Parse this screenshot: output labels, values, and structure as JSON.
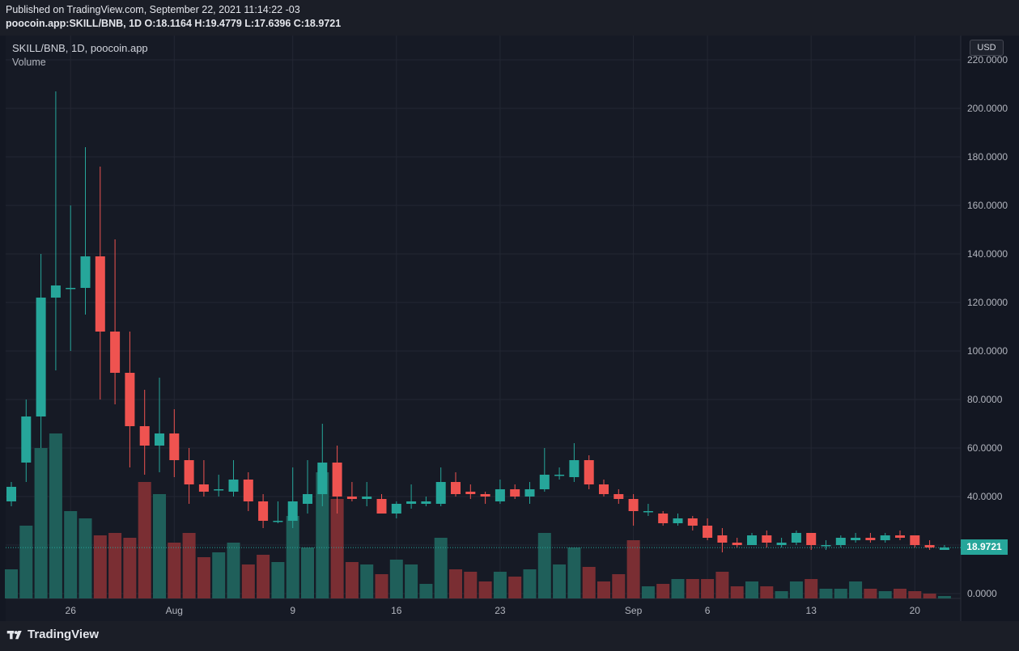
{
  "header": {
    "published": "Published on TradingView.com, September 22, 2021 11:14:22 -03",
    "symbol": "poocoin.app:SKILL/BNB, 1D",
    "o_label": "O:",
    "o_value": "18.1164",
    "h_label": "H:",
    "h_value": "19.4779",
    "l_label": "L:",
    "l_value": "17.6396",
    "c_label": "C:",
    "c_value": "18.9721"
  },
  "legend": {
    "series": "SKILL/BNB, 1D, poocoin.app",
    "volume": "Volume"
  },
  "currency_button": "USD",
  "last_price": "18.9721",
  "footer": {
    "brand": "TradingView"
  },
  "colors": {
    "up": "#26a69a",
    "down": "#ef5350",
    "up_vol": "#1f5f5a",
    "down_vol": "#7a2e33",
    "background": "#161a25"
  },
  "chart_data": {
    "type": "candlestick",
    "ylim": [
      0,
      220
    ],
    "y_ticks": [
      "0.0000",
      "20.0000",
      "40.0000",
      "60.0000",
      "80.0000",
      "100.0000",
      "120.0000",
      "140.0000",
      "160.0000",
      "180.0000",
      "200.0000",
      "220.0000"
    ],
    "x_ticks": [
      "26",
      "Aug",
      "9",
      "16",
      "23",
      "Sep",
      "6",
      "13",
      "20"
    ],
    "grid": true,
    "volume_pane": true,
    "candles": [
      {
        "o": 38,
        "h": 46,
        "l": 36,
        "c": 44,
        "v": 12
      },
      {
        "o": 54,
        "h": 80,
        "l": 46,
        "c": 73,
        "v": 30
      },
      {
        "o": 73,
        "h": 140,
        "l": 60,
        "c": 122,
        "v": 62
      },
      {
        "o": 122,
        "h": 207,
        "l": 92,
        "c": 127,
        "v": 68
      },
      {
        "o": 126,
        "h": 160,
        "l": 100,
        "c": 126,
        "v": 36
      },
      {
        "o": 126,
        "h": 184,
        "l": 115,
        "c": 139,
        "v": 33
      },
      {
        "o": 139,
        "h": 176,
        "l": 80,
        "c": 108,
        "v": 26
      },
      {
        "o": 108,
        "h": 146,
        "l": 78,
        "c": 91,
        "v": 27
      },
      {
        "o": 91,
        "h": 108,
        "l": 52,
        "c": 69,
        "v": 25
      },
      {
        "o": 69,
        "h": 84,
        "l": 49,
        "c": 61,
        "v": 48
      },
      {
        "o": 61,
        "h": 89,
        "l": 50,
        "c": 66,
        "v": 43
      },
      {
        "o": 66,
        "h": 76,
        "l": 48,
        "c": 55,
        "v": 23
      },
      {
        "o": 55,
        "h": 60,
        "l": 37,
        "c": 45,
        "v": 27
      },
      {
        "o": 45,
        "h": 55,
        "l": 40,
        "c": 42,
        "v": 17
      },
      {
        "o": 43,
        "h": 49,
        "l": 40,
        "c": 43,
        "v": 19
      },
      {
        "o": 42,
        "h": 55,
        "l": 40,
        "c": 47,
        "v": 23
      },
      {
        "o": 47,
        "h": 50,
        "l": 34,
        "c": 38,
        "v": 14
      },
      {
        "o": 38,
        "h": 41,
        "l": 27,
        "c": 30,
        "v": 18
      },
      {
        "o": 30,
        "h": 38,
        "l": 29,
        "c": 30,
        "v": 15
      },
      {
        "o": 30,
        "h": 52,
        "l": 27,
        "c": 38,
        "v": 34
      },
      {
        "o": 37,
        "h": 55,
        "l": 33,
        "c": 41,
        "v": 21
      },
      {
        "o": 41,
        "h": 70,
        "l": 36,
        "c": 54,
        "v": 52
      },
      {
        "o": 54,
        "h": 61,
        "l": 33,
        "c": 40,
        "v": 41
      },
      {
        "o": 40,
        "h": 46,
        "l": 38,
        "c": 39,
        "v": 15
      },
      {
        "o": 39,
        "h": 46,
        "l": 36,
        "c": 40,
        "v": 14
      },
      {
        "o": 39,
        "h": 41,
        "l": 33,
        "c": 33,
        "v": 10
      },
      {
        "o": 33,
        "h": 38,
        "l": 31,
        "c": 37,
        "v": 16
      },
      {
        "o": 37,
        "h": 45,
        "l": 35,
        "c": 38,
        "v": 14
      },
      {
        "o": 37,
        "h": 40,
        "l": 36,
        "c": 38,
        "v": 6
      },
      {
        "o": 37,
        "h": 52,
        "l": 36,
        "c": 46,
        "v": 25
      },
      {
        "o": 46,
        "h": 50,
        "l": 40,
        "c": 41,
        "v": 12
      },
      {
        "o": 42,
        "h": 45,
        "l": 39,
        "c": 41,
        "v": 11
      },
      {
        "o": 41,
        "h": 42,
        "l": 37,
        "c": 40,
        "v": 7
      },
      {
        "o": 38,
        "h": 47,
        "l": 37,
        "c": 43,
        "v": 11
      },
      {
        "o": 43,
        "h": 45,
        "l": 39,
        "c": 40,
        "v": 9
      },
      {
        "o": 40,
        "h": 46,
        "l": 37,
        "c": 43,
        "v": 12
      },
      {
        "o": 43,
        "h": 60,
        "l": 42,
        "c": 49,
        "v": 27
      },
      {
        "o": 49,
        "h": 52,
        "l": 47,
        "c": 49,
        "v": 14
      },
      {
        "o": 48,
        "h": 62,
        "l": 46,
        "c": 55,
        "v": 21
      },
      {
        "o": 55,
        "h": 57,
        "l": 43,
        "c": 45,
        "v": 13
      },
      {
        "o": 45,
        "h": 47,
        "l": 40,
        "c": 41,
        "v": 7
      },
      {
        "o": 41,
        "h": 43,
        "l": 37,
        "c": 39,
        "v": 10
      },
      {
        "o": 39,
        "h": 41,
        "l": 28,
        "c": 34,
        "v": 24
      },
      {
        "o": 34,
        "h": 37,
        "l": 32,
        "c": 34,
        "v": 5
      },
      {
        "o": 33,
        "h": 34,
        "l": 28,
        "c": 29,
        "v": 6
      },
      {
        "o": 29,
        "h": 33,
        "l": 28,
        "c": 31,
        "v": 8
      },
      {
        "o": 31,
        "h": 32,
        "l": 26,
        "c": 28,
        "v": 8
      },
      {
        "o": 28,
        "h": 31,
        "l": 22,
        "c": 23,
        "v": 8
      },
      {
        "o": 24,
        "h": 27,
        "l": 17,
        "c": 21,
        "v": 11
      },
      {
        "o": 21,
        "h": 23,
        "l": 19,
        "c": 20,
        "v": 5
      },
      {
        "o": 20,
        "h": 25,
        "l": 20,
        "c": 24,
        "v": 7
      },
      {
        "o": 24,
        "h": 26,
        "l": 19,
        "c": 21,
        "v": 5
      },
      {
        "o": 20,
        "h": 23,
        "l": 19,
        "c": 21,
        "v": 3
      },
      {
        "o": 21,
        "h": 26,
        "l": 20,
        "c": 25,
        "v": 7
      },
      {
        "o": 25,
        "h": 25,
        "l": 18,
        "c": 20,
        "v": 8
      },
      {
        "o": 20,
        "h": 22,
        "l": 18,
        "c": 20,
        "v": 4
      },
      {
        "o": 20,
        "h": 24,
        "l": 19,
        "c": 23,
        "v": 4
      },
      {
        "o": 22,
        "h": 25,
        "l": 21,
        "c": 23,
        "v": 7
      },
      {
        "o": 23,
        "h": 25,
        "l": 21,
        "c": 22,
        "v": 4
      },
      {
        "o": 22,
        "h": 25,
        "l": 21,
        "c": 24,
        "v": 3
      },
      {
        "o": 24,
        "h": 26,
        "l": 22,
        "c": 23,
        "v": 4
      },
      {
        "o": 24,
        "h": 24,
        "l": 19,
        "c": 20,
        "v": 3
      },
      {
        "o": 20,
        "h": 22,
        "l": 18,
        "c": 19,
        "v": 2
      },
      {
        "o": 18,
        "h": 20,
        "l": 18,
        "c": 19,
        "v": 1
      }
    ]
  }
}
